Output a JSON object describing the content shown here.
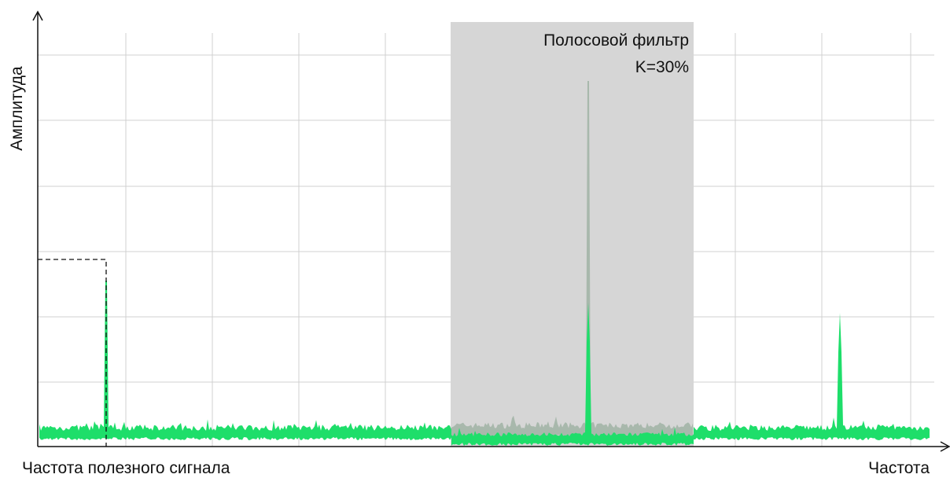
{
  "axes": {
    "y_label": "Амплитуда",
    "x_label": "Частота"
  },
  "signal_label": "Частота полезного сигнала",
  "filter": {
    "title": "Полосовой фильтр",
    "gain": "K=30%"
  }
}
